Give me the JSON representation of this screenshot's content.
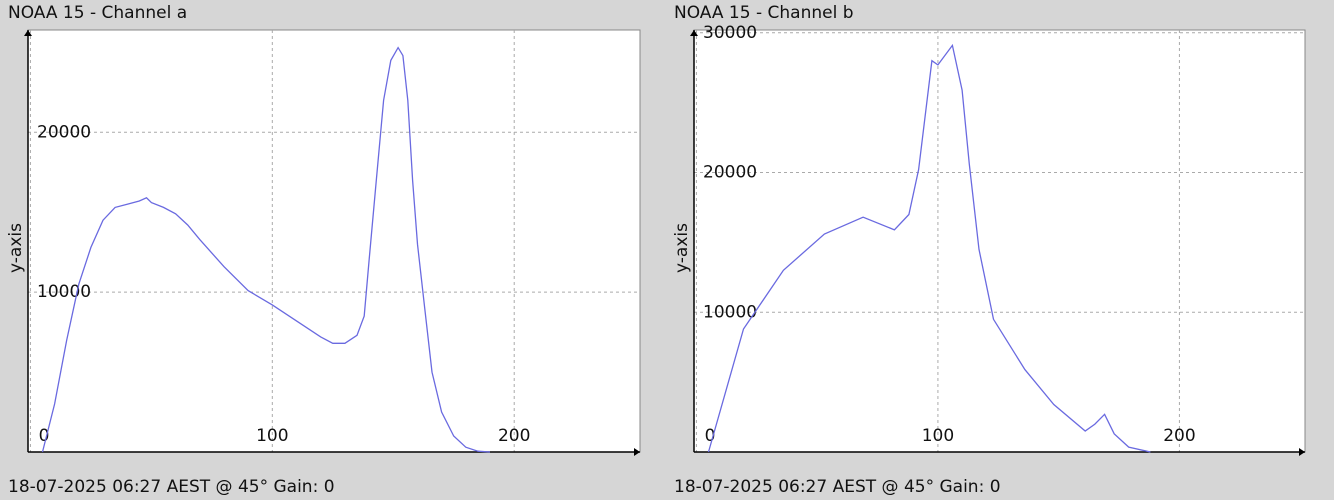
{
  "chart_data": [
    {
      "type": "line",
      "title": "NOAA 15 - Channel a",
      "ylabel": "y-axis",
      "caption": "18-07-2025 06:27 AEST @ 45° Gain: 0",
      "x": [
        5,
        10,
        15,
        20,
        25,
        30,
        35,
        40,
        45,
        48,
        50,
        55,
        60,
        65,
        70,
        80,
        90,
        100,
        110,
        120,
        125,
        130,
        135,
        138,
        140,
        143,
        146,
        149,
        152,
        154,
        156,
        158,
        160,
        163,
        166,
        170,
        175,
        180,
        185,
        190
      ],
      "values": [
        0,
        3000,
        7000,
        10500,
        12800,
        14500,
        15300,
        15500,
        15700,
        15900,
        15600,
        15300,
        14900,
        14200,
        13300,
        11600,
        10100,
        9200,
        8200,
        7200,
        6800,
        6800,
        7300,
        8500,
        12000,
        17000,
        22000,
        24500,
        25300,
        24800,
        22000,
        17000,
        13000,
        9000,
        5000,
        2500,
        1000,
        300,
        50,
        0
      ],
      "color": "#6a6ae0",
      "xlim": [
        -1,
        252
      ],
      "ylim": [
        0,
        26400
      ],
      "xticks": [
        0,
        100,
        200
      ],
      "yticks": [
        10000,
        20000
      ],
      "grid": true
    },
    {
      "type": "line",
      "title": "NOAA 15 - Channel b",
      "ylabel": "y-axis",
      "caption": "18-07-2025 06:27 AEST @ 45° Gain: 0",
      "x": [
        5,
        19.5,
        36,
        53,
        69,
        82,
        88,
        92,
        97.5,
        100,
        106,
        110,
        113,
        117,
        123,
        136,
        148,
        161,
        165,
        169,
        173,
        179,
        188
      ],
      "values": [
        0,
        8800,
        13000,
        15600,
        16800,
        15900,
        17000,
        20200,
        28000,
        27700,
        29100,
        25900,
        20600,
        14500,
        9500,
        5900,
        3400,
        1500,
        2000,
        2700,
        1300,
        350,
        0
      ],
      "color": "#6a6ae0",
      "xlim": [
        -1,
        252
      ],
      "ylim": [
        0,
        30200
      ],
      "xticks": [
        0,
        100,
        200
      ],
      "yticks": [
        10000,
        20000,
        30000
      ],
      "grid": true
    }
  ]
}
